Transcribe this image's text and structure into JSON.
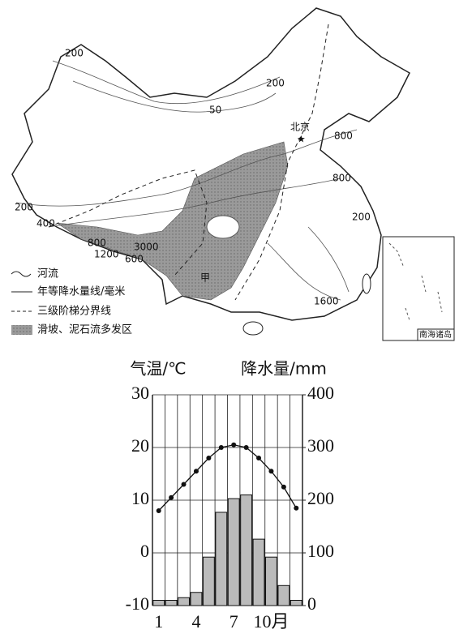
{
  "map": {
    "labels": [
      "200",
      "200",
      "50",
      "北京",
      "800",
      "800",
      "200",
      "200",
      "400",
      "800",
      "3000",
      "1200",
      "600",
      "甲",
      "1600"
    ],
    "legend": [
      "河流",
      "年等降水量线/毫米",
      "三级阶梯分界线",
      "滑坡、泥石流多发区"
    ],
    "inset": "南海诸岛"
  },
  "chart_data": {
    "type": "climograph",
    "ylabel": "气温/℃",
    "y2label": "降水量/mm",
    "categories": [
      "1",
      null,
      null,
      "4",
      null,
      null,
      "7",
      null,
      null,
      "10月",
      null,
      null
    ],
    "ylim": [
      -10,
      30
    ],
    "yticks": [
      -10,
      0,
      10,
      20,
      30
    ],
    "y2lim": [
      0,
      400
    ],
    "y2ticks": [
      0,
      100,
      200,
      300,
      400
    ],
    "grid": true,
    "series": [
      {
        "kind": "line",
        "color": "#111111",
        "values": [
          8,
          10.5,
          13,
          15.5,
          18,
          20,
          20.5,
          20,
          18,
          15.5,
          12.5,
          8.5
        ]
      },
      {
        "kind": "bar",
        "axis": "y2",
        "color": "#bbbbbb",
        "values": [
          10,
          10,
          15,
          25,
          92,
          177,
          203,
          210,
          126,
          92,
          38,
          10
        ]
      }
    ]
  }
}
